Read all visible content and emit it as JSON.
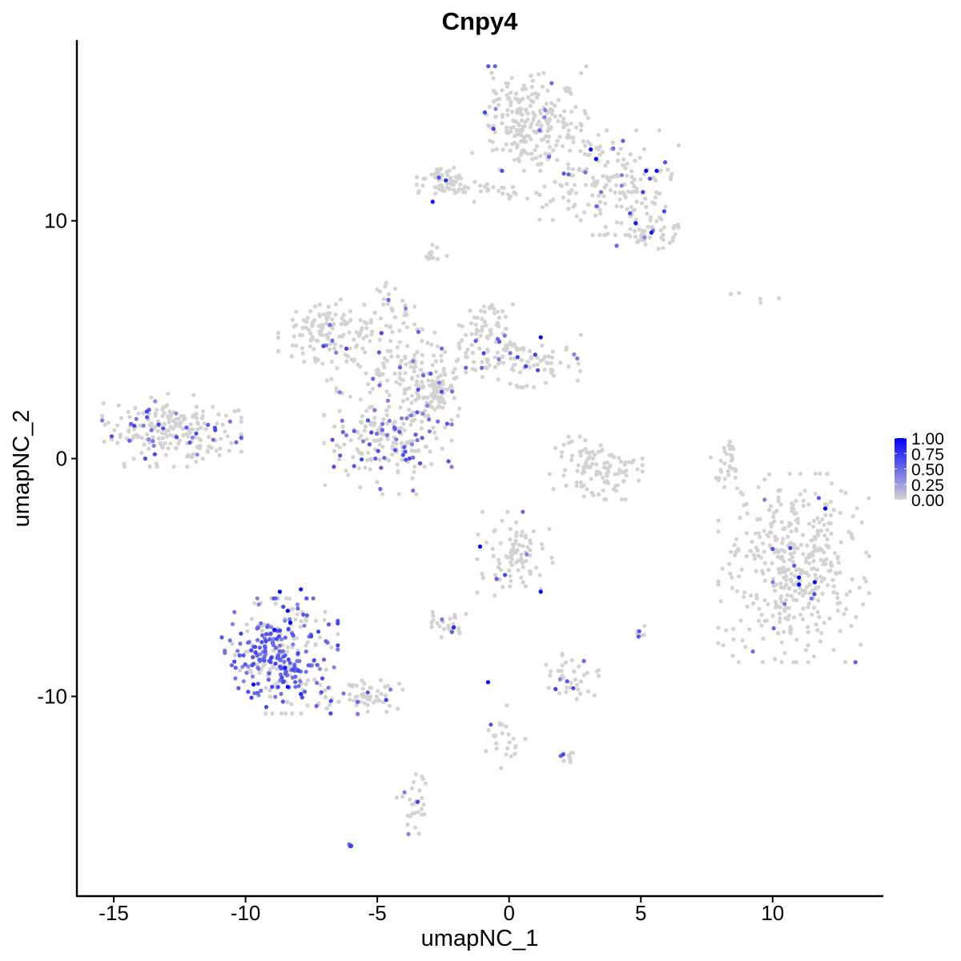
{
  "chart_data": {
    "type": "scatter",
    "title": "Cnpy4",
    "xlabel": "umapNC_1",
    "ylabel": "umapNC_2",
    "xlim": [
      -16.4,
      14.2
    ],
    "ylim": [
      -18.4,
      17.6
    ],
    "x_ticks": [
      -15,
      -10,
      -5,
      0,
      5,
      10
    ],
    "x_tick_labels": [
      "-15",
      "-10",
      "-5",
      "0",
      "5",
      "10"
    ],
    "y_ticks": [
      -10,
      0,
      10
    ],
    "y_tick_labels": [
      "-10",
      "0",
      "10"
    ],
    "grid": false,
    "legend_position": "right",
    "color_scale": {
      "low_color": "#d3d3d3",
      "high_color": "#0000ff",
      "min": 0,
      "max": 1,
      "breaks": [
        1.0,
        0.75,
        0.5,
        0.25,
        0.0
      ],
      "break_labels": [
        "1.00",
        "0.75",
        "0.50",
        "0.25",
        "0.00"
      ]
    },
    "clusters": [
      {
        "cx": 0.8,
        "cy": 14.3,
        "sx": 1.0,
        "sy": 1.0,
        "n": 230,
        "expr_frac": 0.05
      },
      {
        "cx": 3.8,
        "cy": 11.6,
        "sx": 1.2,
        "sy": 1.0,
        "n": 180,
        "expr_frac": 0.1
      },
      {
        "cx": 5.4,
        "cy": 9.6,
        "sx": 0.6,
        "sy": 0.5,
        "n": 50,
        "expr_frac": 0.1
      },
      {
        "cx": -2.4,
        "cy": 11.7,
        "sx": 0.5,
        "sy": 0.3,
        "n": 50,
        "expr_frac": 0.04
      },
      {
        "cx": -0.5,
        "cy": 11.2,
        "sx": 1.6,
        "sy": 0.2,
        "n": 40,
        "expr_frac": 0.03
      },
      {
        "cx": -2.8,
        "cy": 8.6,
        "sx": 0.2,
        "sy": 0.2,
        "n": 12,
        "expr_frac": 0.0
      },
      {
        "cx": -7.0,
        "cy": 5.4,
        "sx": 0.8,
        "sy": 0.6,
        "n": 100,
        "expr_frac": 0.06
      },
      {
        "cx": -4.5,
        "cy": 4.2,
        "sx": 1.3,
        "sy": 1.0,
        "n": 150,
        "expr_frac": 0.08
      },
      {
        "cx": -3.0,
        "cy": 2.9,
        "sx": 0.6,
        "sy": 0.5,
        "n": 90,
        "expr_frac": 0.03
      },
      {
        "cx": -4.6,
        "cy": 0.7,
        "sx": 1.1,
        "sy": 1.0,
        "n": 200,
        "expr_frac": 0.25
      },
      {
        "cx": -0.8,
        "cy": 5.3,
        "sx": 0.5,
        "sy": 0.7,
        "n": 70,
        "expr_frac": 0.12
      },
      {
        "cx": 0.8,
        "cy": 4.1,
        "sx": 1.3,
        "sy": 0.5,
        "n": 90,
        "expr_frac": 0.12
      },
      {
        "cx": -4.5,
        "cy": 6.7,
        "sx": 0.3,
        "sy": 0.4,
        "n": 20,
        "expr_frac": 0.15
      },
      {
        "cx": -12.8,
        "cy": 1.2,
        "sx": 1.2,
        "sy": 0.7,
        "n": 220,
        "expr_frac": 0.2
      },
      {
        "cx": 3.3,
        "cy": -0.4,
        "sx": 0.8,
        "sy": 0.6,
        "n": 110,
        "expr_frac": 0.01
      },
      {
        "cx": 8.2,
        "cy": -0.3,
        "sx": 0.25,
        "sy": 0.5,
        "n": 30,
        "expr_frac": 0.0
      },
      {
        "cx": 10.8,
        "cy": -4.6,
        "sx": 1.3,
        "sy": 1.8,
        "n": 420,
        "expr_frac": 0.03
      },
      {
        "cx": -8.7,
        "cy": -8.3,
        "sx": 1.0,
        "sy": 1.1,
        "n": 320,
        "expr_frac": 0.55
      },
      {
        "cx": -5.4,
        "cy": -9.9,
        "sx": 0.8,
        "sy": 0.4,
        "n": 60,
        "expr_frac": 0.2
      },
      {
        "cx": 0.2,
        "cy": -4.0,
        "sx": 0.7,
        "sy": 0.8,
        "n": 90,
        "expr_frac": 0.05
      },
      {
        "cx": -2.3,
        "cy": -6.9,
        "sx": 0.4,
        "sy": 0.3,
        "n": 28,
        "expr_frac": 0.1
      },
      {
        "cx": 2.3,
        "cy": -9.3,
        "sx": 0.5,
        "sy": 0.5,
        "n": 40,
        "expr_frac": 0.15
      },
      {
        "cx": -3.6,
        "cy": -14.6,
        "sx": 0.3,
        "sy": 0.7,
        "n": 30,
        "expr_frac": 0.05
      },
      {
        "cx": 0.0,
        "cy": -11.7,
        "sx": 0.4,
        "sy": 0.6,
        "n": 25,
        "expr_frac": 0.15
      },
      {
        "cx": 5.0,
        "cy": -7.3,
        "sx": 0.15,
        "sy": 0.15,
        "n": 8,
        "expr_frac": 0.3
      },
      {
        "cx": 2.3,
        "cy": -12.5,
        "sx": 0.3,
        "sy": 0.2,
        "n": 10,
        "expr_frac": 0.3
      },
      {
        "cx": 9.5,
        "cy": 6.8,
        "sx": 0.5,
        "sy": 0.2,
        "n": 5,
        "expr_frac": 0.0
      },
      {
        "cx": -6.0,
        "cy": -16.3,
        "sx": 0.05,
        "sy": 0.05,
        "n": 3,
        "expr_frac": 1.0
      }
    ],
    "high_points": [
      {
        "x": 3.1,
        "y": 13.0,
        "value": 1.0
      },
      {
        "x": 3.3,
        "y": 12.6,
        "value": 0.95
      },
      {
        "x": 5.2,
        "y": 12.1,
        "value": 1.0
      },
      {
        "x": 5.6,
        "y": 12.1,
        "value": 1.0
      },
      {
        "x": -2.9,
        "y": 10.8,
        "value": 0.9
      },
      {
        "x": -2.4,
        "y": 11.7,
        "value": 0.8
      },
      {
        "x": 4.8,
        "y": 9.9,
        "value": 0.9
      },
      {
        "x": 5.4,
        "y": 9.5,
        "value": 0.9
      },
      {
        "x": 1.2,
        "y": 5.1,
        "value": 1.0
      },
      {
        "x": -1.1,
        "y": -3.7,
        "value": 1.0
      },
      {
        "x": 1.2,
        "y": -5.6,
        "value": 1.0
      },
      {
        "x": -0.8,
        "y": -9.4,
        "value": 1.0
      },
      {
        "x": -2.1,
        "y": -7.1,
        "value": 0.8
      },
      {
        "x": -8.7,
        "y": -5.6,
        "value": 1.0
      },
      {
        "x": -7.9,
        "y": -5.5,
        "value": 0.9
      },
      {
        "x": -8.4,
        "y": -6.4,
        "value": 1.0
      },
      {
        "x": -8.3,
        "y": -6.9,
        "value": 1.0
      },
      {
        "x": -8.9,
        "y": -7.2,
        "value": 0.9
      },
      {
        "x": -8.5,
        "y": -8.8,
        "value": 0.9
      },
      {
        "x": -9.7,
        "y": -9.5,
        "value": 1.0
      },
      {
        "x": -8.4,
        "y": -9.6,
        "value": 1.0
      },
      {
        "x": -7.9,
        "y": -9.9,
        "value": 0.8
      },
      {
        "x": 12.0,
        "y": -2.1,
        "value": 1.0
      },
      {
        "x": 11.0,
        "y": -5.0,
        "value": 1.0
      },
      {
        "x": 11.0,
        "y": -5.3,
        "value": 1.0
      },
      {
        "x": 11.6,
        "y": -5.2,
        "value": 1.0
      },
      {
        "x": 10.0,
        "y": -3.8,
        "value": 0.6
      },
      {
        "x": -6.0,
        "y": -16.3,
        "value": 0.7
      }
    ]
  }
}
